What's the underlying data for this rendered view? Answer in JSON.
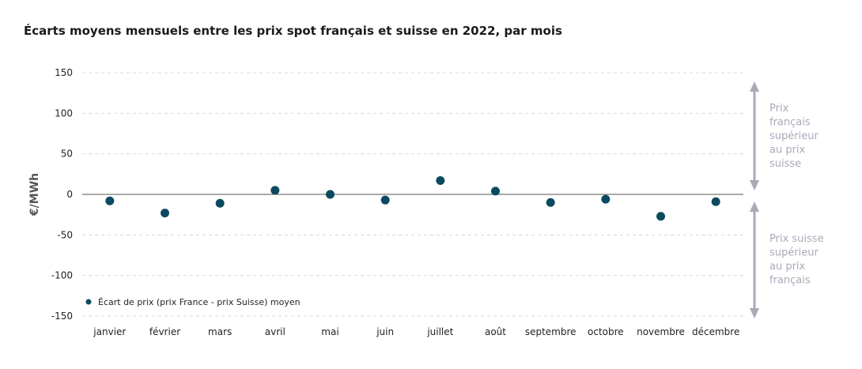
{
  "chart_data": {
    "type": "scatter",
    "title": "Écarts moyens mensuels entre les prix spot français et suisse en 2022, par mois",
    "ylabel": "€/MWh",
    "ylim": [
      -150,
      150
    ],
    "yticks": [
      150,
      100,
      50,
      0,
      -50,
      -100,
      -150
    ],
    "ytick_labels": [
      "150",
      "100",
      "50",
      "0",
      "-50",
      "-100",
      "-150"
    ],
    "categories": [
      "janvier",
      "février",
      "mars",
      "avril",
      "mai",
      "juin",
      "juillet",
      "août",
      "septembre",
      "octobre",
      "novembre",
      "décembre"
    ],
    "series": [
      {
        "name": "Écart de prix (prix France - prix Suisse) moyen",
        "values": [
          -8,
          -23,
          -11,
          5,
          0,
          -7,
          17,
          4,
          -10,
          -6,
          -27,
          -9
        ],
        "color": "#0b4a5e"
      }
    ],
    "grid": true,
    "gridline_style": "dashed",
    "zero_line": true,
    "legend_position": "bottom-left",
    "annotations": [
      {
        "text": "Prix français supérieur au prix suisse",
        "lines": [
          "Prix",
          "français",
          "supérieur",
          "au prix",
          "suisse"
        ],
        "direction": "positive"
      },
      {
        "text": "Prix suisse supérieur au prix français",
        "lines": [
          "Prix suisse",
          "supérieur",
          "au prix",
          "français"
        ],
        "direction": "negative"
      }
    ],
    "colors": {
      "marker": "#0b4a5e",
      "annotation_text": "#a9a9b8",
      "annotation_arrow": "#a9a9b8",
      "grid": "#d9d9d9",
      "zero_line": "#555555",
      "axis_text": "#222222"
    }
  }
}
